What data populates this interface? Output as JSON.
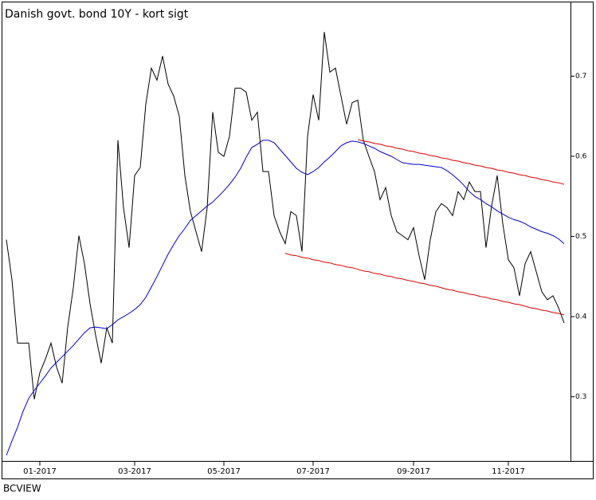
{
  "chart_data": {
    "type": "line",
    "title": "Danish govt. bond 10Y - kort sigt",
    "footer": "BCVIEW",
    "categories": [
      null,
      null,
      null,
      null,
      null,
      null,
      "01-2017",
      null,
      null,
      null,
      null,
      null,
      null,
      null,
      null,
      null,
      null,
      null,
      null,
      null,
      null,
      null,
      null,
      "03-2017",
      null,
      null,
      null,
      null,
      null,
      null,
      null,
      null,
      null,
      null,
      null,
      null,
      null,
      null,
      null,
      "05-2017",
      null,
      null,
      null,
      null,
      null,
      null,
      null,
      null,
      null,
      null,
      null,
      null,
      null,
      null,
      null,
      "07-2017",
      null,
      null,
      null,
      null,
      null,
      null,
      null,
      null,
      null,
      null,
      null,
      null,
      null,
      null,
      null,
      null,
      null,
      "09-2017",
      null,
      null,
      null,
      null,
      null,
      null,
      null,
      null,
      null,
      null,
      null,
      null,
      null,
      null,
      null,
      null,
      "11-2017",
      null,
      null,
      null,
      null,
      null,
      null,
      null,
      null,
      null,
      null
    ],
    "series": [
      {
        "color": "#000000",
        "values": [
          0.496,
          0.446,
          0.367,
          0.367,
          0.367,
          0.297,
          0.33,
          0.347,
          0.367,
          0.337,
          0.317,
          0.387,
          0.436,
          0.501,
          0.466,
          0.416,
          0.377,
          0.342,
          0.386,
          0.367,
          0.62,
          0.536,
          0.486,
          0.576,
          0.586,
          0.665,
          0.71,
          0.695,
          0.725,
          0.69,
          0.675,
          0.65,
          0.576,
          0.531,
          0.506,
          0.481,
          0.536,
          0.655,
          0.605,
          0.6,
          0.625,
          0.685,
          0.685,
          0.68,
          0.645,
          0.655,
          0.581,
          0.581,
          0.526,
          0.506,
          0.491,
          0.531,
          0.526,
          0.481,
          0.625,
          0.677,
          0.645,
          0.755,
          0.705,
          0.71,
          0.675,
          0.64,
          0.667,
          0.67,
          0.62,
          0.6,
          0.581,
          0.546,
          0.561,
          0.526,
          0.506,
          0.501,
          0.496,
          0.511,
          0.476,
          0.446,
          0.496,
          0.531,
          0.541,
          0.536,
          0.526,
          0.556,
          0.546,
          0.568,
          0.556,
          0.556,
          0.486,
          0.538,
          0.576,
          0.516,
          0.471,
          0.461,
          0.426,
          0.466,
          0.481,
          0.456,
          0.431,
          0.421,
          0.426,
          0.411,
          0.392
        ]
      },
      {
        "color": "#0000cc",
        "values": [
          0.227,
          0.245,
          0.262,
          0.282,
          0.298,
          0.308,
          0.317,
          0.326,
          0.336,
          0.343,
          0.35,
          0.357,
          0.364,
          0.372,
          0.38,
          0.386,
          0.387,
          0.386,
          0.385,
          0.39,
          0.396,
          0.4,
          0.404,
          0.409,
          0.415,
          0.424,
          0.437,
          0.45,
          0.464,
          0.478,
          0.49,
          0.501,
          0.51,
          0.52,
          0.526,
          0.532,
          0.538,
          0.543,
          0.55,
          0.557,
          0.565,
          0.574,
          0.585,
          0.599,
          0.611,
          0.615,
          0.62,
          0.62,
          0.617,
          0.609,
          0.601,
          0.593,
          0.585,
          0.58,
          0.577,
          0.581,
          0.586,
          0.593,
          0.599,
          0.606,
          0.613,
          0.617,
          0.619,
          0.618,
          0.616,
          0.613,
          0.61,
          0.606,
          0.603,
          0.6,
          0.596,
          0.592,
          0.591,
          0.59,
          0.59,
          0.589,
          0.588,
          0.587,
          0.586,
          0.582,
          0.577,
          0.571,
          0.564,
          0.556,
          0.55,
          0.546,
          0.541,
          0.537,
          0.532,
          0.528,
          0.524,
          0.521,
          0.519,
          0.516,
          0.512,
          0.509,
          0.506,
          0.504,
          0.501,
          0.497,
          0.491
        ]
      },
      {
        "color": "#e00000",
        "values": [
          null,
          null,
          null,
          null,
          null,
          null,
          null,
          null,
          null,
          null,
          null,
          null,
          null,
          null,
          null,
          null,
          null,
          null,
          null,
          null,
          null,
          null,
          null,
          null,
          null,
          null,
          null,
          null,
          null,
          null,
          null,
          null,
          null,
          null,
          null,
          null,
          null,
          null,
          null,
          null,
          null,
          null,
          null,
          null,
          null,
          null,
          null,
          null,
          null,
          null,
          null,
          null,
          null,
          null,
          null,
          null,
          null,
          null,
          null,
          null,
          null,
          null,
          null,
          0.621,
          0.619,
          0.618,
          0.616,
          0.615,
          0.613,
          0.612,
          0.61,
          0.609,
          0.607,
          0.606,
          0.604,
          0.603,
          0.601,
          0.6,
          0.598,
          0.597,
          0.595,
          0.594,
          0.592,
          0.591,
          0.589,
          0.588,
          0.586,
          0.585,
          0.583,
          0.582,
          0.58,
          0.579,
          0.577,
          0.576,
          0.574,
          0.573,
          0.571,
          0.57,
          0.568,
          0.567,
          0.565
        ]
      },
      {
        "color": "#e00000",
        "values": [
          null,
          null,
          null,
          null,
          null,
          null,
          null,
          null,
          null,
          null,
          null,
          null,
          null,
          null,
          null,
          null,
          null,
          null,
          null,
          null,
          null,
          null,
          null,
          null,
          null,
          null,
          null,
          null,
          null,
          null,
          null,
          null,
          null,
          null,
          null,
          null,
          null,
          null,
          null,
          null,
          null,
          null,
          null,
          null,
          null,
          null,
          null,
          null,
          null,
          null,
          0.479,
          0.477,
          0.476,
          0.474,
          0.473,
          0.471,
          0.47,
          0.468,
          0.467,
          0.465,
          0.464,
          0.462,
          0.461,
          0.459,
          0.457,
          0.456,
          0.454,
          0.453,
          0.451,
          0.45,
          0.448,
          0.447,
          0.445,
          0.444,
          0.442,
          0.441,
          0.439,
          0.438,
          0.436,
          0.434,
          0.433,
          0.431,
          0.43,
          0.428,
          0.427,
          0.425,
          0.424,
          0.422,
          0.421,
          0.419,
          0.418,
          0.416,
          0.415,
          0.413,
          0.411,
          0.41,
          0.408,
          0.407,
          0.405,
          0.404,
          0.402
        ]
      }
    ],
    "ylim": [
      0.22,
      0.792
    ],
    "yticks": [
      0.3,
      0.4,
      0.5,
      0.6,
      0.7
    ],
    "y_axis_side": "right",
    "title_color": "#e00000"
  }
}
